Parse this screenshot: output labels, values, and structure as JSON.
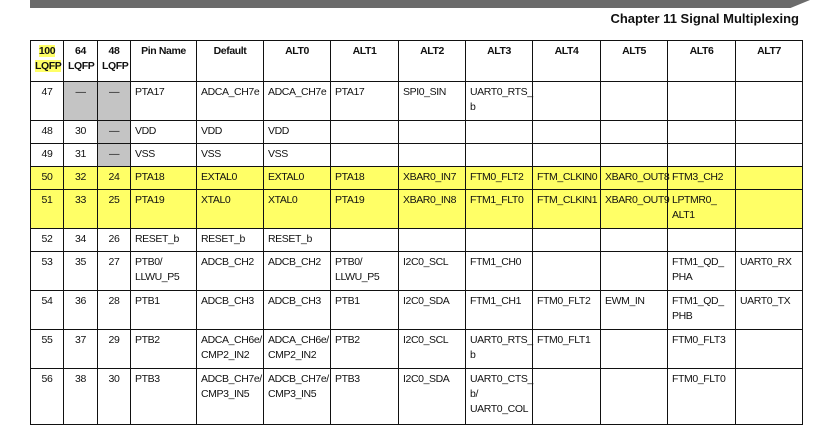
{
  "chapter_title": "Chapter 11 Signal Multiplexing",
  "highlight_color": "#ffff66",
  "columns": [
    "100 LQFP",
    "64 LQFP",
    "48 LQFP",
    "Pin Name",
    "Default",
    "ALT0",
    "ALT1",
    "ALT2",
    "ALT3",
    "ALT4",
    "ALT5",
    "ALT6",
    "ALT7"
  ],
  "rows": [
    {
      "cells": [
        "47",
        "—",
        "—",
        "PTA17",
        "ADCA_CH7e",
        "ADCA_CH7e",
        "PTA17",
        "SPI0_SIN",
        "UART0_RTS_ b",
        "",
        "",
        "",
        ""
      ],
      "highlight": false,
      "size": "r2"
    },
    {
      "cells": [
        "48",
        "30",
        "—",
        "VDD",
        "VDD",
        "VDD",
        "",
        "",
        "",
        "",
        "",
        "",
        ""
      ],
      "highlight": false,
      "size": "r1"
    },
    {
      "cells": [
        "49",
        "31",
        "—",
        "VSS",
        "VSS",
        "VSS",
        "",
        "",
        "",
        "",
        "",
        "",
        ""
      ],
      "highlight": false,
      "size": "r1"
    },
    {
      "cells": [
        "50",
        "32",
        "24",
        "PTA18",
        "EXTAL0",
        "EXTAL0",
        "PTA18",
        "XBAR0_IN7",
        "FTM0_FLT2",
        "FTM_CLKIN0",
        "XBAR0_OUT8",
        "FTM3_CH2",
        ""
      ],
      "highlight": true,
      "size": "r1"
    },
    {
      "cells": [
        "51",
        "33",
        "25",
        "PTA19",
        "XTAL0",
        "XTAL0",
        "PTA19",
        "XBAR0_IN8",
        "FTM1_FLT0",
        "FTM_CLKIN1",
        "XBAR0_OUT9",
        "LPTMR0_ ALT1",
        ""
      ],
      "highlight": true,
      "size": "r2"
    },
    {
      "cells": [
        "52",
        "34",
        "26",
        "RESET_b",
        "RESET_b",
        "RESET_b",
        "",
        "",
        "",
        "",
        "",
        "",
        ""
      ],
      "highlight": false,
      "size": "r1"
    },
    {
      "cells": [
        "53",
        "35",
        "27",
        "PTB0/ LLWU_P5",
        "ADCB_CH2",
        "ADCB_CH2",
        "PTB0/ LLWU_P5",
        "I2C0_SCL",
        "FTM1_CH0",
        "",
        "",
        "FTM1_QD_ PHA",
        "UART0_RX"
      ],
      "highlight": false,
      "size": "r2"
    },
    {
      "cells": [
        "54",
        "36",
        "28",
        "PTB1",
        "ADCB_CH3",
        "ADCB_CH3",
        "PTB1",
        "I2C0_SDA",
        "FTM1_CH1",
        "FTM0_FLT2",
        "EWM_IN",
        "FTM1_QD_ PHB",
        "UART0_TX"
      ],
      "highlight": false,
      "size": "r2"
    },
    {
      "cells": [
        "55",
        "37",
        "29",
        "PTB2",
        "ADCA_CH6e/ CMP2_IN2",
        "ADCA_CH6e/ CMP2_IN2",
        "PTB2",
        "I2C0_SCL",
        "UART0_RTS_ b",
        "FTM0_FLT1",
        "",
        "FTM0_FLT3",
        ""
      ],
      "highlight": false,
      "size": "r2"
    },
    {
      "cells": [
        "56",
        "38",
        "30",
        "PTB3",
        "ADCB_CH7e/ CMP3_IN5",
        "ADCB_CH7e/ CMP3_IN5",
        "PTB3",
        "I2C0_SDA",
        "UART0_CTS_ b/ UART0_COL",
        "",
        "",
        "FTM0_FLT0",
        ""
      ],
      "highlight": false,
      "size": "rlast"
    }
  ]
}
